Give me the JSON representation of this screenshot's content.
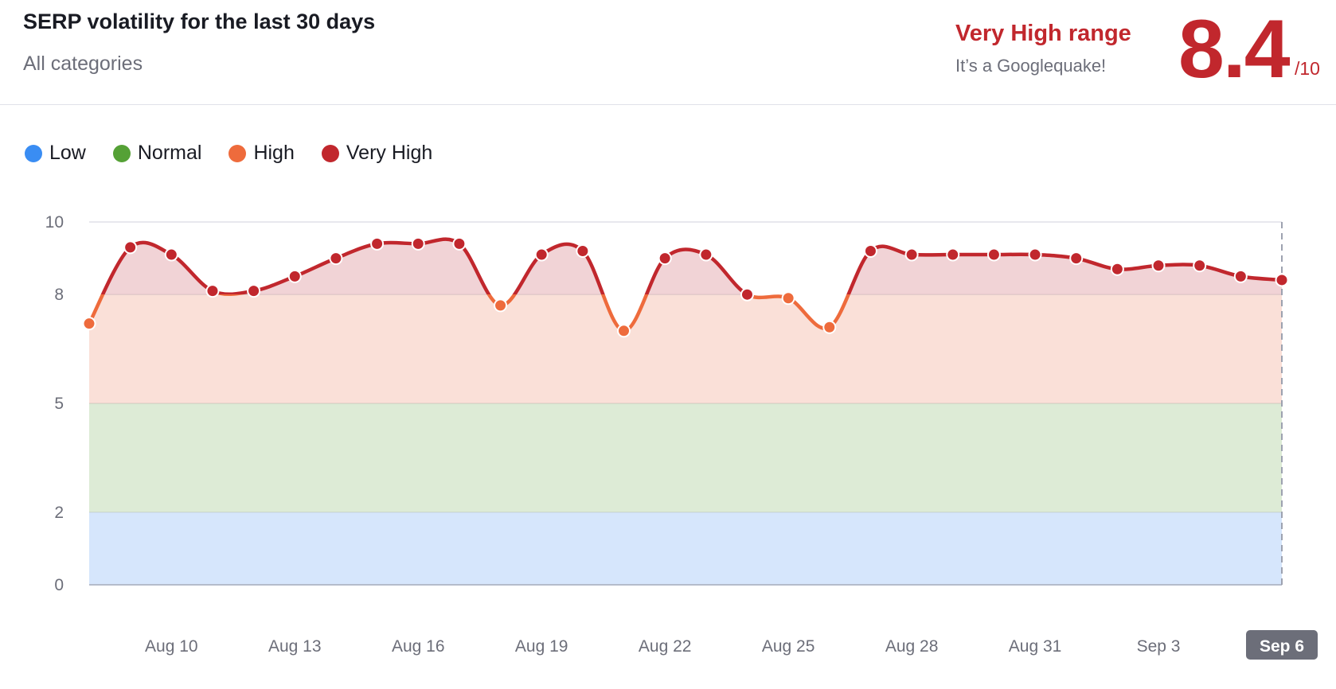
{
  "header": {
    "title": "SERP volatility for the last 30 days",
    "subtitle": "All categories",
    "range_label": "Very High range",
    "range_message": "It’s a Googlequake!",
    "score": "8.4",
    "score_max": "/10"
  },
  "legend": [
    {
      "label": "Low",
      "color": "#3a8df3"
    },
    {
      "label": "Normal",
      "color": "#55a136"
    },
    {
      "label": "High",
      "color": "#ee6b3c"
    },
    {
      "label": "Very High",
      "color": "#c1272d"
    }
  ],
  "chart_data": {
    "type": "line",
    "ylim": [
      0,
      10
    ],
    "yticks": [
      0,
      2,
      5,
      8,
      10
    ],
    "bands": [
      {
        "name": "Low",
        "from": 0,
        "to": 2,
        "color": "#d6e6fc"
      },
      {
        "name": "Normal",
        "from": 2,
        "to": 5,
        "color": "#ddebd6"
      },
      {
        "name": "High",
        "from": 5,
        "to": 8,
        "color": "#fae0d8"
      },
      {
        "name": "Very High",
        "from": 8,
        "to": 10,
        "color": "#f1d3d6"
      }
    ],
    "x": [
      "Aug 8",
      "Aug 9",
      "Aug 10",
      "Aug 11",
      "Aug 12",
      "Aug 13",
      "Aug 14",
      "Aug 15",
      "Aug 16",
      "Aug 17",
      "Aug 18",
      "Aug 19",
      "Aug 20",
      "Aug 21",
      "Aug 22",
      "Aug 23",
      "Aug 24",
      "Aug 25",
      "Aug 26",
      "Aug 27",
      "Aug 28",
      "Aug 29",
      "Aug 30",
      "Aug 31",
      "Sep 1",
      "Sep 2",
      "Sep 3",
      "Sep 4",
      "Sep 5",
      "Sep 6"
    ],
    "values": [
      7.2,
      9.3,
      9.1,
      8.1,
      8.1,
      8.5,
      9.0,
      9.4,
      9.4,
      9.4,
      7.7,
      9.1,
      9.2,
      7.0,
      9.0,
      9.1,
      8.0,
      7.9,
      7.1,
      9.2,
      9.1,
      9.1,
      9.1,
      9.1,
      9.0,
      8.7,
      8.8,
      8.8,
      8.5,
      8.4
    ],
    "xtick_labels": [
      "Aug 10",
      "Aug 13",
      "Aug 16",
      "Aug 19",
      "Aug 22",
      "Aug 25",
      "Aug 28",
      "Aug 31",
      "Sep 3",
      "Sep 6"
    ],
    "highlighted": "Sep 6",
    "colors": {
      "high": "#ee6b3c",
      "very_high": "#c1272d"
    }
  }
}
